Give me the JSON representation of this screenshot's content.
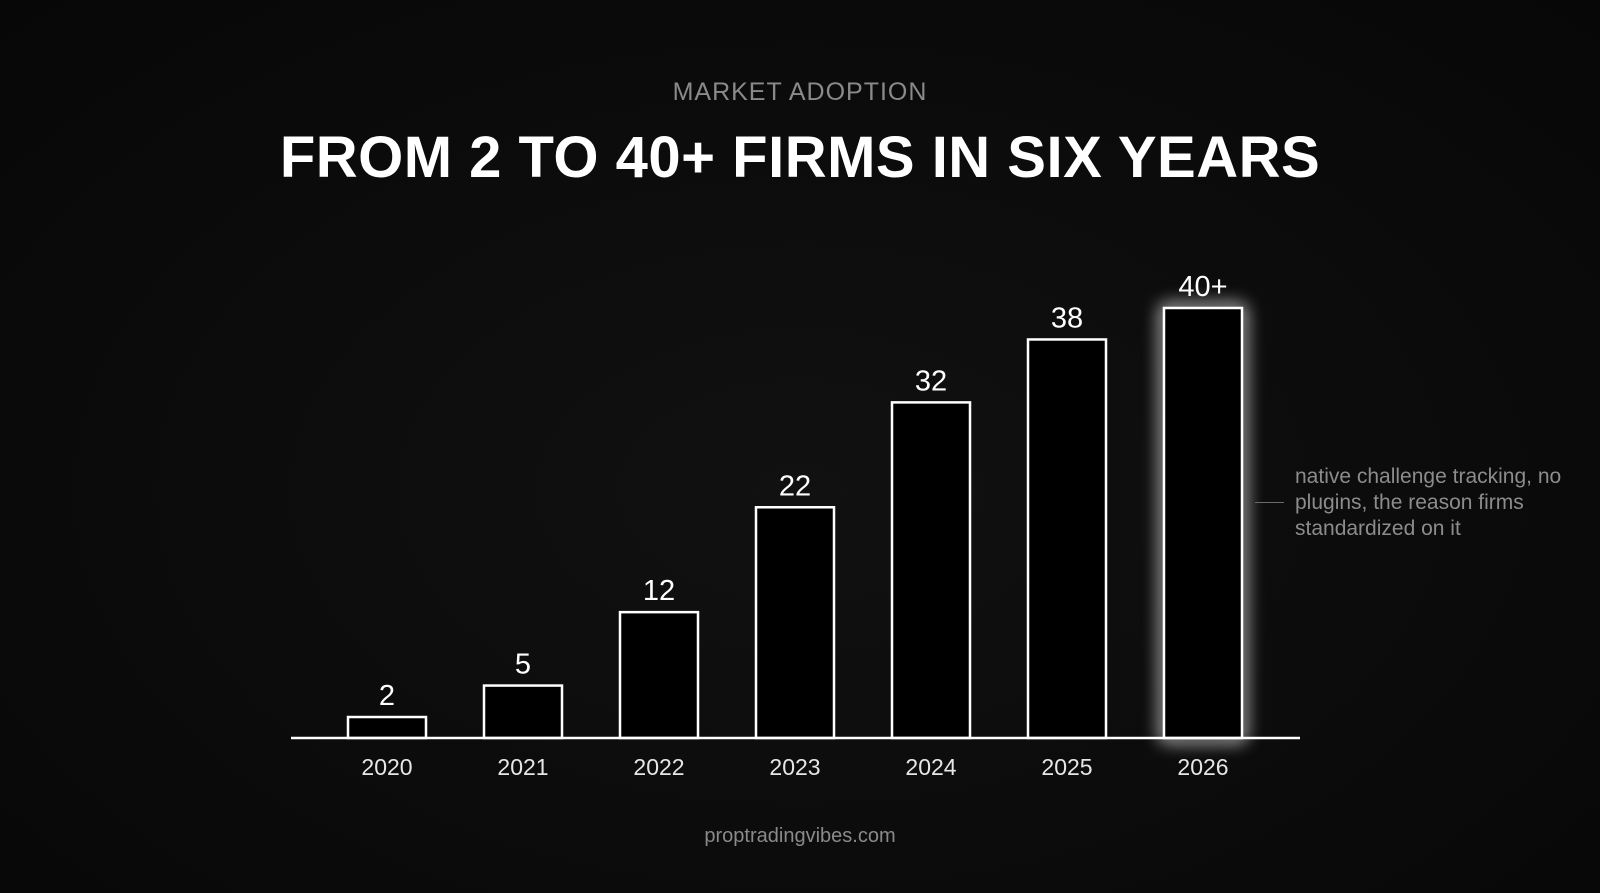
{
  "header": {
    "eyebrow": "MARKET ADOPTION",
    "title": "FROM 2 TO 40+ FIRMS IN SIX YEARS"
  },
  "chart_data": {
    "type": "bar",
    "categories": [
      "2020",
      "2021",
      "2022",
      "2023",
      "2024",
      "2025",
      "2026"
    ],
    "values": [
      2,
      5,
      12,
      22,
      32,
      38,
      41
    ],
    "value_labels": [
      "2",
      "5",
      "12",
      "22",
      "32",
      "38",
      "40+"
    ],
    "highlight_category": "2026",
    "ylim": [
      0,
      41
    ],
    "grid": false,
    "xlabel": "",
    "ylabel": "",
    "colors": {
      "bar_stroke": "#ffffff",
      "bar_fill": "#000000",
      "highlight_glow": "#ffffff",
      "axis": "#ffffff"
    }
  },
  "annotation": {
    "text": "native challenge tracking, no plugins, the reason firms standardized on it"
  },
  "footer": {
    "text": "proptradingvibes.com"
  }
}
